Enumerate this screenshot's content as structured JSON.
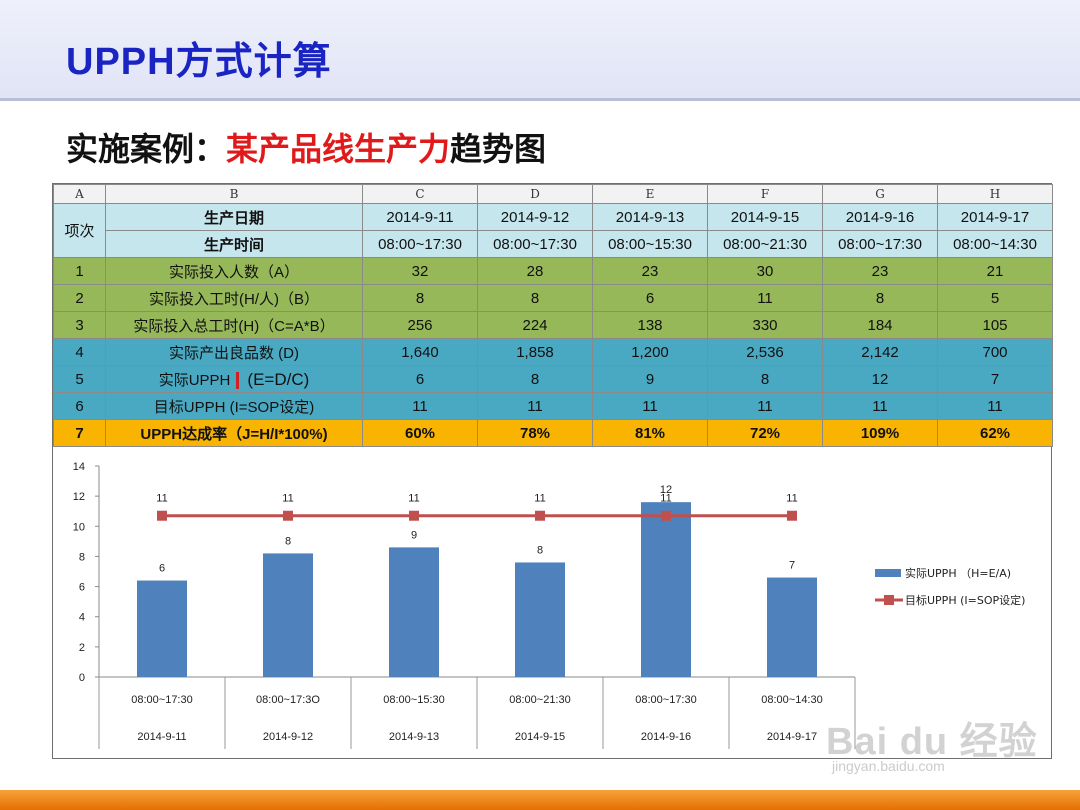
{
  "header": {
    "title": "UPPH方式计算",
    "subtitle_prefix": "实施案例：",
    "subtitle_highlight": "某产品线生产力",
    "subtitle_suffix": "趋势图"
  },
  "table": {
    "col_letters": [
      "A",
      "B",
      "C",
      "D",
      "E",
      "F",
      "G",
      "H"
    ],
    "item_header": "项次",
    "date_label": "生产日期",
    "time_label": "生产时间",
    "dates": [
      "2014-9-11",
      "2014-9-12",
      "2014-9-13",
      "2014-9-15",
      "2014-9-16",
      "2014-9-17"
    ],
    "times": [
      "08:00~17:30",
      "08:00~17:30",
      "08:00~15:30",
      "08:00~21:30",
      "08:00~17:30",
      "08:00~14:30"
    ],
    "rows": [
      {
        "no": "1",
        "label": "实际投入人数（A）",
        "values": [
          "32",
          "28",
          "23",
          "30",
          "23",
          "21"
        ]
      },
      {
        "no": "2",
        "label": "实际投入工时(H/人)（B）",
        "values": [
          "8",
          "8",
          "6",
          "11",
          "8",
          "5"
        ]
      },
      {
        "no": "3",
        "label": "实际投入总工时(H)（C=A*B）",
        "values": [
          "256",
          "224",
          "138",
          "330",
          "184",
          "105"
        ]
      },
      {
        "no": "4",
        "label": "实际产出良品数 (D)",
        "values": [
          "1,640",
          "1,858",
          "1,200",
          "2,536",
          "2,142",
          "700"
        ]
      },
      {
        "no": "5",
        "label": "实际UPPH",
        "label_extra": "(E=D/C)",
        "values": [
          "6",
          "8",
          "9",
          "8",
          "12",
          "7"
        ]
      },
      {
        "no": "6",
        "label": "目标UPPH (I=SOP设定)",
        "values": [
          "11",
          "11",
          "11",
          "11",
          "11",
          "11"
        ]
      },
      {
        "no": "7",
        "label": "UPPH达成率（J=H/I*100%)",
        "values": [
          "60%",
          "78%",
          "81%",
          "72%",
          "109%",
          "62%"
        ]
      }
    ]
  },
  "chart_data": {
    "type": "bar",
    "categories": [
      {
        "time": "08:00~17:30",
        "date": "2014-9-11"
      },
      {
        "time": "08:00~17:3O",
        "date": "2014-9-12"
      },
      {
        "time": "08:00~15:30",
        "date": "2014-9-13"
      },
      {
        "time": "08:00~21:30",
        "date": "2014-9-15"
      },
      {
        "time": "08:00~17:30",
        "date": "2014-9-16"
      },
      {
        "time": "08:00~14:30",
        "date": "2014-9-17"
      }
    ],
    "series": [
      {
        "name": "实际UPPH （H=E/A)",
        "kind": "bar",
        "color": "#4f81bd",
        "values": [
          6.4,
          8.2,
          8.6,
          7.6,
          11.6,
          6.6
        ],
        "labels": [
          "6",
          "8",
          "9",
          "8",
          "12",
          "7"
        ]
      },
      {
        "name": "目标UPPH (I=SOP设定)",
        "kind": "line",
        "color": "#c0504d",
        "values": [
          10.7,
          10.7,
          10.7,
          10.7,
          10.7,
          10.7
        ],
        "labels": [
          "11",
          "11",
          "11",
          "11",
          "11",
          "11"
        ]
      }
    ],
    "ylim": [
      0,
      14
    ],
    "yticks": [
      0,
      2,
      4,
      6,
      8,
      10,
      12,
      14
    ],
    "legend_position": "right",
    "grid": false
  },
  "watermark": {
    "brand": "Bai du 经验",
    "url": "jingyan.baidu.com"
  }
}
